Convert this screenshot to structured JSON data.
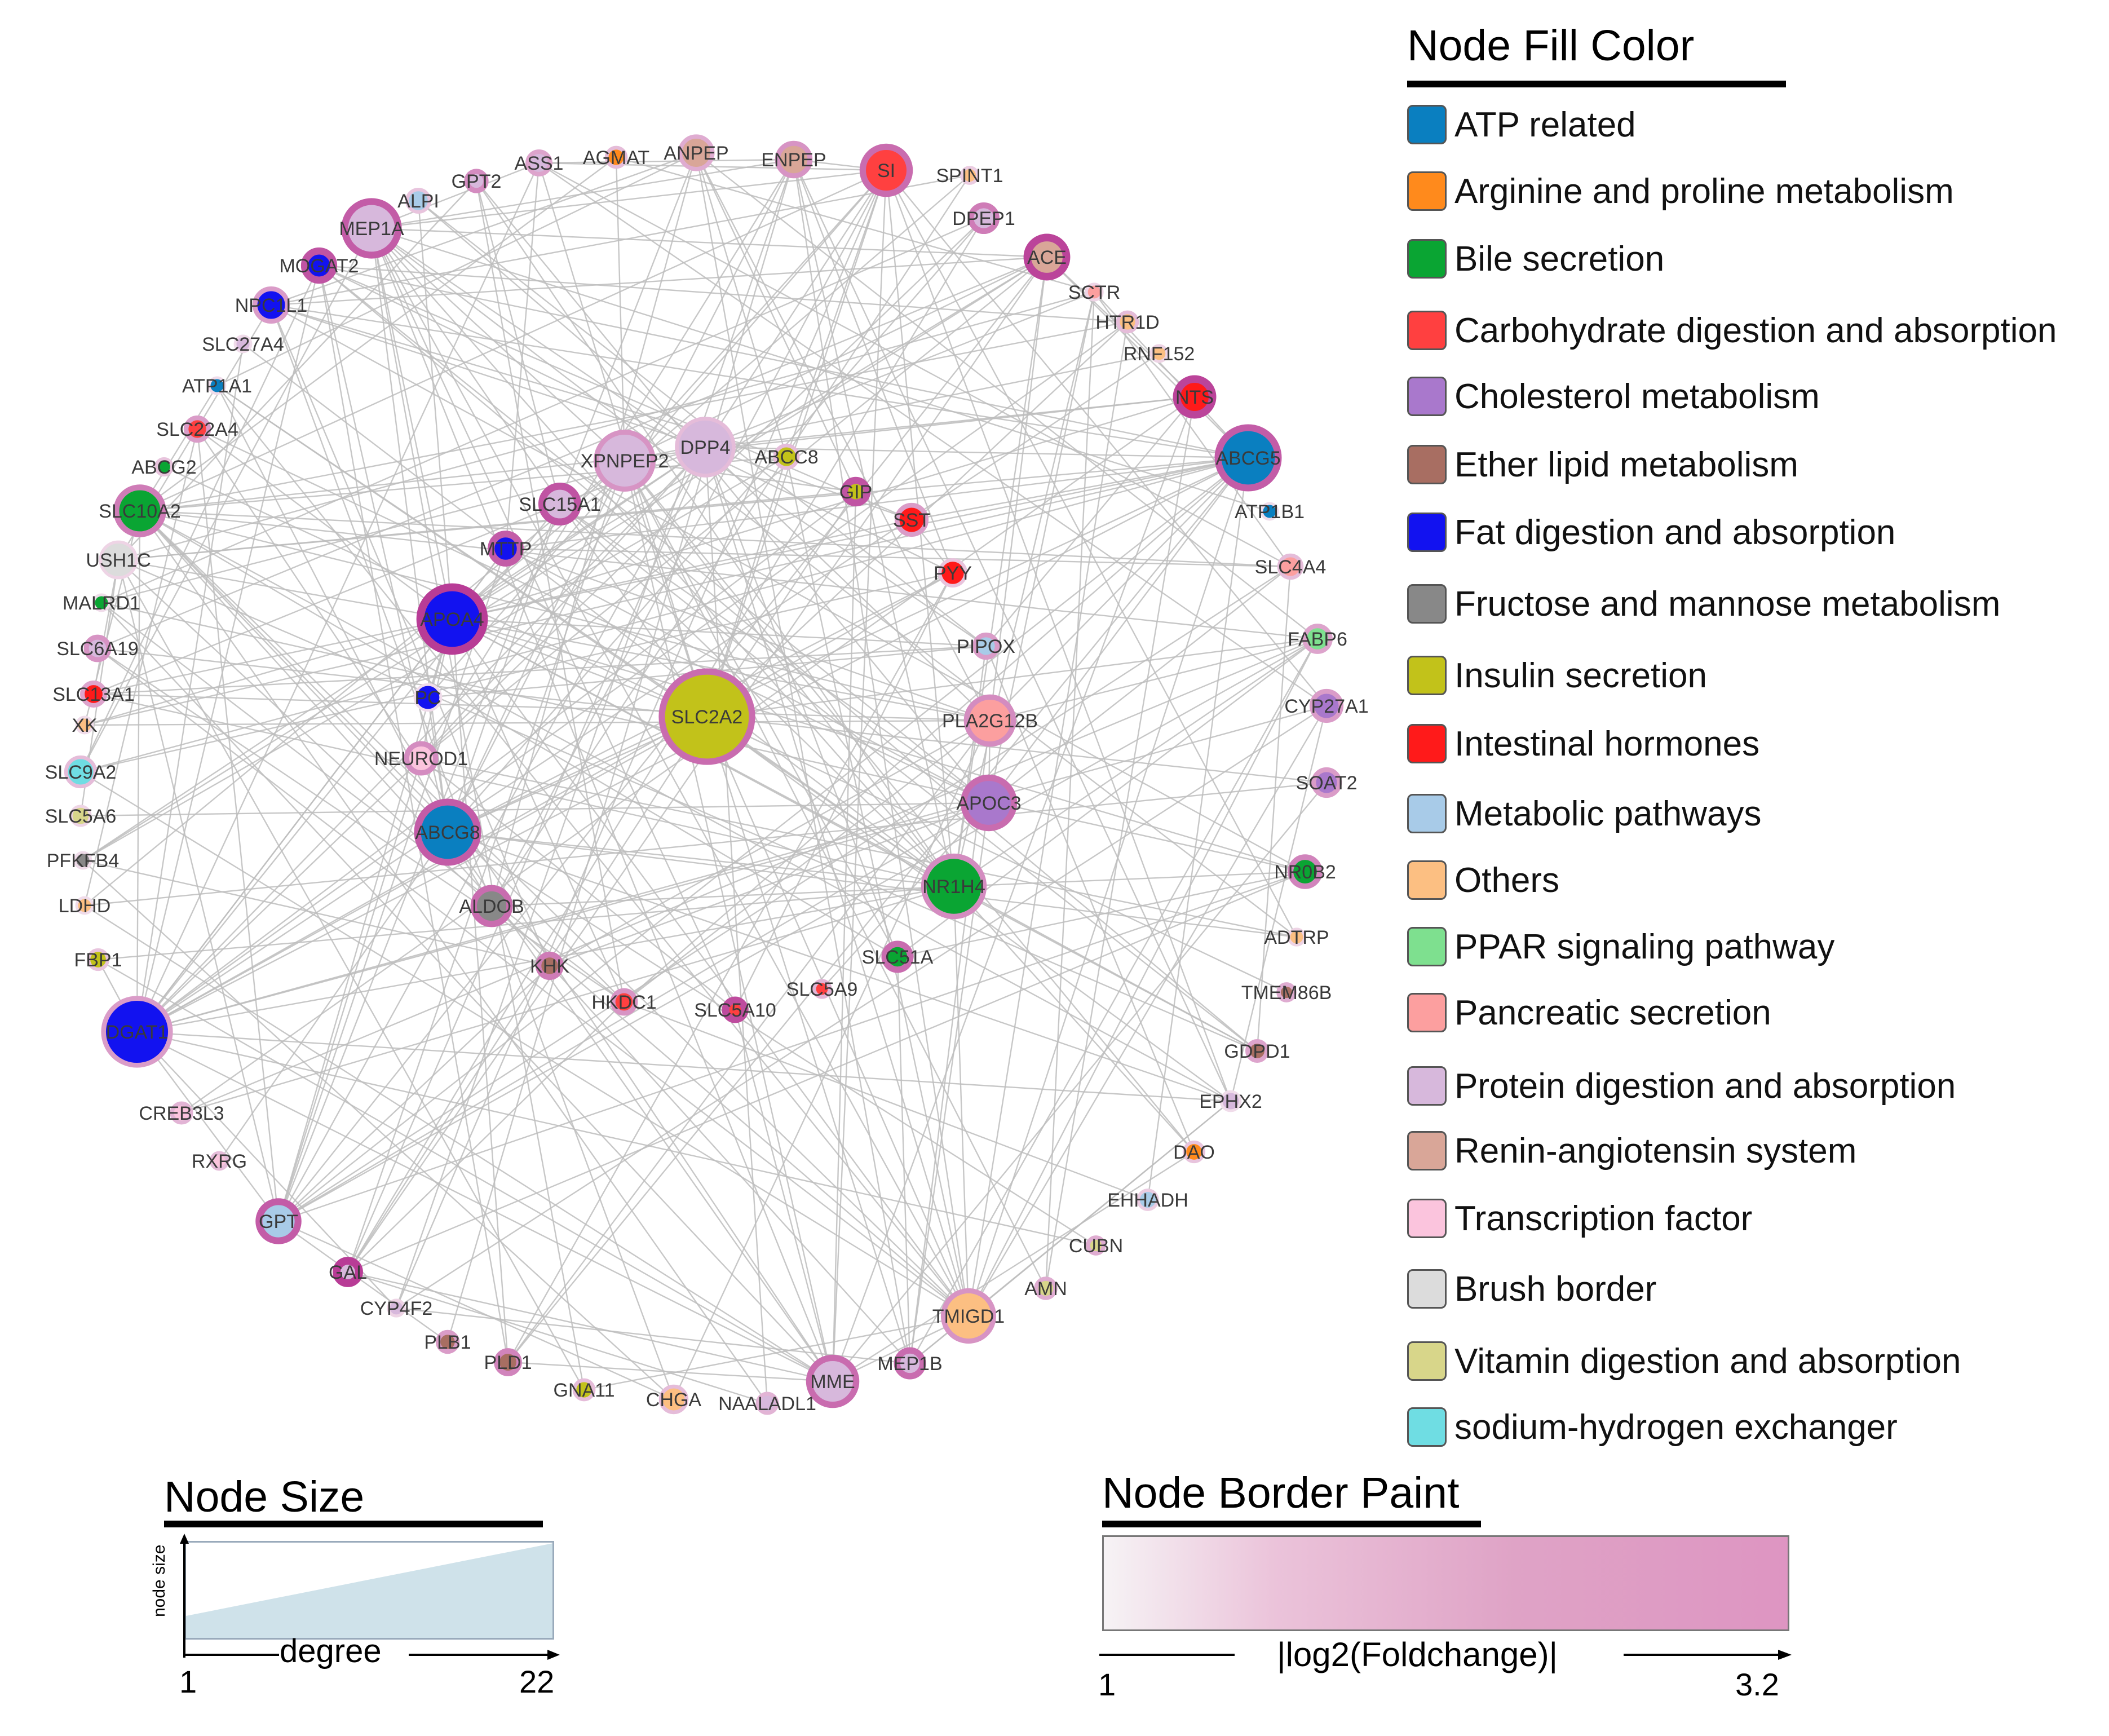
{
  "legend_fill": {
    "title": "Node Fill Color",
    "items": [
      {
        "label": "ATP related",
        "color": "#0a7fc0"
      },
      {
        "label": "Arginine and proline metabolism",
        "color": "#ff8a1c"
      },
      {
        "label": "Bile secretion",
        "color": "#0aa533"
      },
      {
        "label": "Carbohydrate digestion and absorption",
        "color": "#ff4040"
      },
      {
        "label": "Cholesterol metabolism",
        "color": "#a978cc"
      },
      {
        "label": "Ether lipid metabolism",
        "color": "#a86e62"
      },
      {
        "label": "Fat digestion and absorption",
        "color": "#1212f0"
      },
      {
        "label": "Fructose and mannose metabolism",
        "color": "#888888"
      },
      {
        "label": "Insulin secretion",
        "color": "#c2c21a"
      },
      {
        "label": "Intestinal hormones",
        "color": "#ff1a1a"
      },
      {
        "label": "Metabolic pathways",
        "color": "#a8cbe8"
      },
      {
        "label": "Others",
        "color": "#fcbf82"
      },
      {
        "label": "PPAR signaling pathway",
        "color": "#7ee08f"
      },
      {
        "label": "Pancreatic secretion",
        "color": "#fc9f9f"
      },
      {
        "label": "Protein digestion and absorption",
        "color": "#d7b8dc"
      },
      {
        "label": "Renin-angiotensin system",
        "color": "#d9a698"
      },
      {
        "label": "Transcription factor",
        "color": "#fbc4dd"
      },
      {
        "label": "Brush border",
        "color": "#dcdcdc"
      },
      {
        "label": "Vitamin digestion and absorption",
        "color": "#d8d68a"
      },
      {
        "label": "sodium-hydrogen exchanger",
        "color": "#6fdde3"
      }
    ]
  },
  "legend_size": {
    "title": "Node Size",
    "y_label": "node size",
    "x_label": "degree",
    "min": "1",
    "max": "22"
  },
  "legend_border": {
    "title": "Node Border Paint",
    "label": "|log2(Foldchange)|",
    "min": "1",
    "max": "3.2"
  },
  "network": {
    "edge_color": "#bdbdbd",
    "nodes": [
      {
        "label": "SI",
        "category": "Carbohydrate digestion and absorption",
        "degree": 9,
        "border": 2.6
      },
      {
        "label": "SPINT1",
        "category": "Others",
        "degree": 1,
        "border": 1.4
      },
      {
        "label": "DPEP1",
        "category": "Protein digestion and absorption",
        "degree": 4,
        "border": 2.4
      },
      {
        "label": "ACE",
        "category": "Renin-angiotensin system",
        "degree": 8,
        "border": 3.1
      },
      {
        "label": "SCTR",
        "category": "Pancreatic secretion",
        "degree": 1,
        "border": 1.3
      },
      {
        "label": "HTR1D",
        "category": "Others",
        "degree": 2,
        "border": 1.6
      },
      {
        "label": "RNF152",
        "category": "Others",
        "degree": 1,
        "border": 1.3
      },
      {
        "label": "NTS",
        "category": "Intestinal hormones",
        "degree": 7,
        "border": 3.1
      },
      {
        "label": "ABCG5",
        "category": "ATP related",
        "degree": 13,
        "border": 2.8
      },
      {
        "label": "ATP1B1",
        "category": "ATP related",
        "degree": 1,
        "border": 1.2
      },
      {
        "label": "SLC4A4",
        "category": "Pancreatic secretion",
        "degree": 3,
        "border": 1.6
      },
      {
        "label": "FABP6",
        "category": "PPAR signaling pathway",
        "degree": 4,
        "border": 1.9
      },
      {
        "label": "CYP27A1",
        "category": "Cholesterol metabolism",
        "degree": 5,
        "border": 2.0
      },
      {
        "label": "SOAT2",
        "category": "Cholesterol metabolism",
        "degree": 4,
        "border": 2.0
      },
      {
        "label": "NR0B2",
        "category": "Bile secretion",
        "degree": 5,
        "border": 2.3
      },
      {
        "label": "ADTRP",
        "category": "Others",
        "degree": 1,
        "border": 1.3
      },
      {
        "label": "TMEM86B",
        "category": "Ether lipid metabolism",
        "degree": 1,
        "border": 1.8
      },
      {
        "label": "GDPD1",
        "category": "Ether lipid metabolism",
        "degree": 2,
        "border": 1.9
      },
      {
        "label": "EPHX2",
        "category": "Protein digestion and absorption",
        "degree": 2,
        "border": 1.2
      },
      {
        "label": "DAO",
        "category": "Arginine and proline metabolism",
        "degree": 2,
        "border": 1.5
      },
      {
        "label": "EHHADH",
        "category": "Metabolic pathways",
        "degree": 2,
        "border": 1.4
      },
      {
        "label": "CUBN",
        "category": "Vitamin digestion and absorption",
        "degree": 1,
        "border": 1.8
      },
      {
        "label": "AMN",
        "category": "Vitamin digestion and absorption",
        "degree": 2,
        "border": 1.8
      },
      {
        "label": "TMIGD1",
        "category": "Others",
        "degree": 10,
        "border": 2.1
      },
      {
        "label": "MEP1B",
        "category": "Protein digestion and absorption",
        "degree": 4,
        "border": 2.6
      },
      {
        "label": "MME",
        "category": "Protein digestion and absorption",
        "degree": 9,
        "border": 2.6
      },
      {
        "label": "NAALADL1",
        "category": "Protein digestion and absorption",
        "degree": 2,
        "border": 1.7
      },
      {
        "label": "CHGA",
        "category": "Others",
        "degree": 4,
        "border": 1.6
      },
      {
        "label": "GNA11",
        "category": "Insulin secretion",
        "degree": 2,
        "border": 1.6
      },
      {
        "label": "PLD1",
        "category": "Ether lipid metabolism",
        "degree": 3,
        "border": 2.3
      },
      {
        "label": "PLB1",
        "category": "Ether lipid metabolism",
        "degree": 2,
        "border": 2.0
      },
      {
        "label": "CYP4F2",
        "category": "Protein digestion and absorption",
        "degree": 1,
        "border": 1.3
      },
      {
        "label": "GAL",
        "category": "Protein digestion and absorption",
        "degree": 3,
        "border": 3.2
      },
      {
        "label": "GPT",
        "category": "Metabolic pathways",
        "degree": 8,
        "border": 2.8
      },
      {
        "label": "RXRG",
        "category": "Transcription factor",
        "degree": 1,
        "border": 1.6
      },
      {
        "label": "CREB3L3",
        "category": "Transcription factor",
        "degree": 2,
        "border": 1.7
      },
      {
        "label": "DGAT1",
        "category": "Fat digestion and absorption",
        "degree": 15,
        "border": 2.0
      },
      {
        "label": "FBP1",
        "category": "Insulin secretion",
        "degree": 2,
        "border": 1.5
      },
      {
        "label": "LDHD",
        "category": "Others",
        "degree": 1,
        "border": 1.2
      },
      {
        "label": "PFKFB4",
        "category": "Fructose and mannose metabolism",
        "degree": 1,
        "border": 1.2
      },
      {
        "label": "SLC5A6",
        "category": "Vitamin digestion and absorption",
        "degree": 2,
        "border": 1.3
      },
      {
        "label": "SLC9A2",
        "category": "sodium-hydrogen exchanger",
        "degree": 5,
        "border": 1.6
      },
      {
        "label": "XK",
        "category": "Others",
        "degree": 1,
        "border": 1.2
      },
      {
        "label": "SLC13A1",
        "category": "Intestinal hormones",
        "degree": 3,
        "border": 1.9
      },
      {
        "label": "SLC6A19",
        "category": "Protein digestion and absorption",
        "degree": 3,
        "border": 2.1
      },
      {
        "label": "MALRD1",
        "category": "Bile secretion",
        "degree": 1,
        "border": 1.2
      },
      {
        "label": "USH1C",
        "category": "Brush border",
        "degree": 7,
        "border": 1.3
      },
      {
        "label": "SLC10A2",
        "category": "Bile secretion",
        "degree": 9,
        "border": 2.4
      },
      {
        "label": "ABCG2",
        "category": "Bile secretion",
        "degree": 1,
        "border": 1.5
      },
      {
        "label": "SLC22A4",
        "category": "Carbohydrate digestion and absorption",
        "degree": 3,
        "border": 2.0
      },
      {
        "label": "ATP1A1",
        "category": "ATP related",
        "degree": 1,
        "border": 1.2
      },
      {
        "label": "SLC27A4",
        "category": "Protein digestion and absorption",
        "degree": 1,
        "border": 1.2
      },
      {
        "label": "NPC1L1",
        "category": "Fat digestion and absorption",
        "degree": 6,
        "border": 2.0
      },
      {
        "label": "MOGAT2",
        "category": "Fat digestion and absorption",
        "degree": 5,
        "border": 2.9
      },
      {
        "label": "MEP1A",
        "category": "Protein digestion and absorption",
        "degree": 11,
        "border": 2.8
      },
      {
        "label": "ALPI",
        "category": "Metabolic pathways",
        "degree": 3,
        "border": 1.5
      },
      {
        "label": "GPT2",
        "category": "Protein digestion and absorption",
        "degree": 2,
        "border": 2.2
      },
      {
        "label": "ASS1",
        "category": "Protein digestion and absorption",
        "degree": 3,
        "border": 1.9
      },
      {
        "label": "AGMAT",
        "category": "Arginine and proline metabolism",
        "degree": 2,
        "border": 1.6
      },
      {
        "label": "ANPEP",
        "category": "Renin-angiotensin system",
        "degree": 6,
        "border": 1.8
      },
      {
        "label": "ENPEP",
        "category": "Renin-angiotensin system",
        "degree": 6,
        "border": 2.1
      },
      {
        "label": "XPNPEP2",
        "category": "Protein digestion and absorption",
        "degree": 12,
        "border": 2.1
      },
      {
        "label": "DPP4",
        "category": "Protein digestion and absorption",
        "degree": 12,
        "border": 1.6
      },
      {
        "label": "ABCC8",
        "category": "Insulin secretion",
        "degree": 3,
        "border": 1.6
      },
      {
        "label": "GIP",
        "category": "Insulin secretion",
        "degree": 3,
        "border": 2.9
      },
      {
        "label": "SST",
        "category": "Intestinal hormones",
        "degree": 5,
        "border": 2.0
      },
      {
        "label": "PYY",
        "category": "Intestinal hormones",
        "degree": 4,
        "border": 1.5
      },
      {
        "label": "PIPOX",
        "category": "Metabolic pathways",
        "degree": 3,
        "border": 2.0
      },
      {
        "label": "PLA2G12B",
        "category": "Pancreatic secretion",
        "degree": 9,
        "border": 2.2
      },
      {
        "label": "APOC3",
        "category": "Cholesterol metabolism",
        "degree": 10,
        "border": 2.6
      },
      {
        "label": "NR1H4",
        "category": "Bile secretion",
        "degree": 13,
        "border": 2.2
      },
      {
        "label": "SLC51A",
        "category": "Bile secretion",
        "degree": 4,
        "border": 2.6
      },
      {
        "label": "SLC5A9",
        "category": "Carbohydrate digestion and absorption",
        "degree": 1,
        "border": 1.7
      },
      {
        "label": "SLC5A10",
        "category": "Carbohydrate digestion and absorption",
        "degree": 2,
        "border": 3.0
      },
      {
        "label": "HKDC1",
        "category": "Carbohydrate digestion and absorption",
        "degree": 3,
        "border": 2.1
      },
      {
        "label": "KHK",
        "category": "Ether lipid metabolism",
        "degree": 3,
        "border": 2.4
      },
      {
        "label": "ALDOB",
        "category": "Fructose and mannose metabolism",
        "degree": 7,
        "border": 2.6
      },
      {
        "label": "ABCG8",
        "category": "ATP related",
        "degree": 13,
        "border": 2.8
      },
      {
        "label": "NEUROD1",
        "category": "Transcription factor",
        "degree": 5,
        "border": 2.2
      },
      {
        "label": "PC",
        "category": "Fat digestion and absorption",
        "degree": 4,
        "border": 1.2
      },
      {
        "label": "APOA4",
        "category": "Fat digestion and absorption",
        "degree": 14,
        "border": 3.2
      },
      {
        "label": "MTTP",
        "category": "Fat digestion and absorption",
        "degree": 5,
        "border": 2.8
      },
      {
        "label": "SLC15A1",
        "category": "Protein digestion and absorption",
        "degree": 7,
        "border": 2.9
      },
      {
        "label": "SLC2A2",
        "category": "Insulin secretion",
        "degree": 22,
        "border": 2.6
      }
    ]
  }
}
